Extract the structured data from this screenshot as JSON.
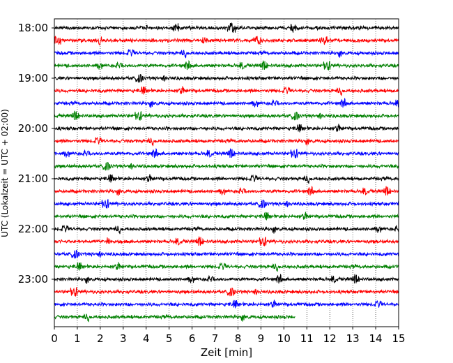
{
  "chart_data": {
    "type": "line",
    "title": "",
    "xlabel": "Zeit  [min]",
    "ylabel": "UTC (Lokalzeit = UTC + 02:00)",
    "xlim": [
      0,
      15
    ],
    "x_ticks": [
      "0",
      "1",
      "2",
      "3",
      "4",
      "5",
      "6",
      "7",
      "8",
      "9",
      "10",
      "11",
      "12",
      "13",
      "14",
      "15"
    ],
    "y_ticks": [
      "18:00",
      "19:00",
      "20:00",
      "21:00",
      "22:00",
      "23:00"
    ],
    "grid": "vertical dotted",
    "trace_interval_min": 15,
    "trace_colors": [
      "#000000",
      "#ff0000",
      "#0000ff",
      "#008000"
    ],
    "series": [
      {
        "start": "18:00",
        "end_min": 15
      },
      {
        "start": "18:15",
        "end_min": 15
      },
      {
        "start": "18:30",
        "end_min": 15
      },
      {
        "start": "18:45",
        "end_min": 15
      },
      {
        "start": "19:00",
        "end_min": 15
      },
      {
        "start": "19:15",
        "end_min": 15
      },
      {
        "start": "19:30",
        "end_min": 15
      },
      {
        "start": "19:45",
        "end_min": 15
      },
      {
        "start": "20:00",
        "end_min": 15
      },
      {
        "start": "20:15",
        "end_min": 15
      },
      {
        "start": "20:30",
        "end_min": 15
      },
      {
        "start": "20:45",
        "end_min": 15
      },
      {
        "start": "21:00",
        "end_min": 15
      },
      {
        "start": "21:15",
        "end_min": 15
      },
      {
        "start": "21:30",
        "end_min": 15
      },
      {
        "start": "21:45",
        "end_min": 15
      },
      {
        "start": "22:00",
        "end_min": 15
      },
      {
        "start": "22:15",
        "end_min": 15
      },
      {
        "start": "22:30",
        "end_min": 15
      },
      {
        "start": "22:45",
        "end_min": 15
      },
      {
        "start": "23:00",
        "end_min": 15
      },
      {
        "start": "23:15",
        "end_min": 15
      },
      {
        "start": "23:30",
        "end_min": 15
      },
      {
        "start": "23:45",
        "end_min": 10.5
      }
    ]
  }
}
